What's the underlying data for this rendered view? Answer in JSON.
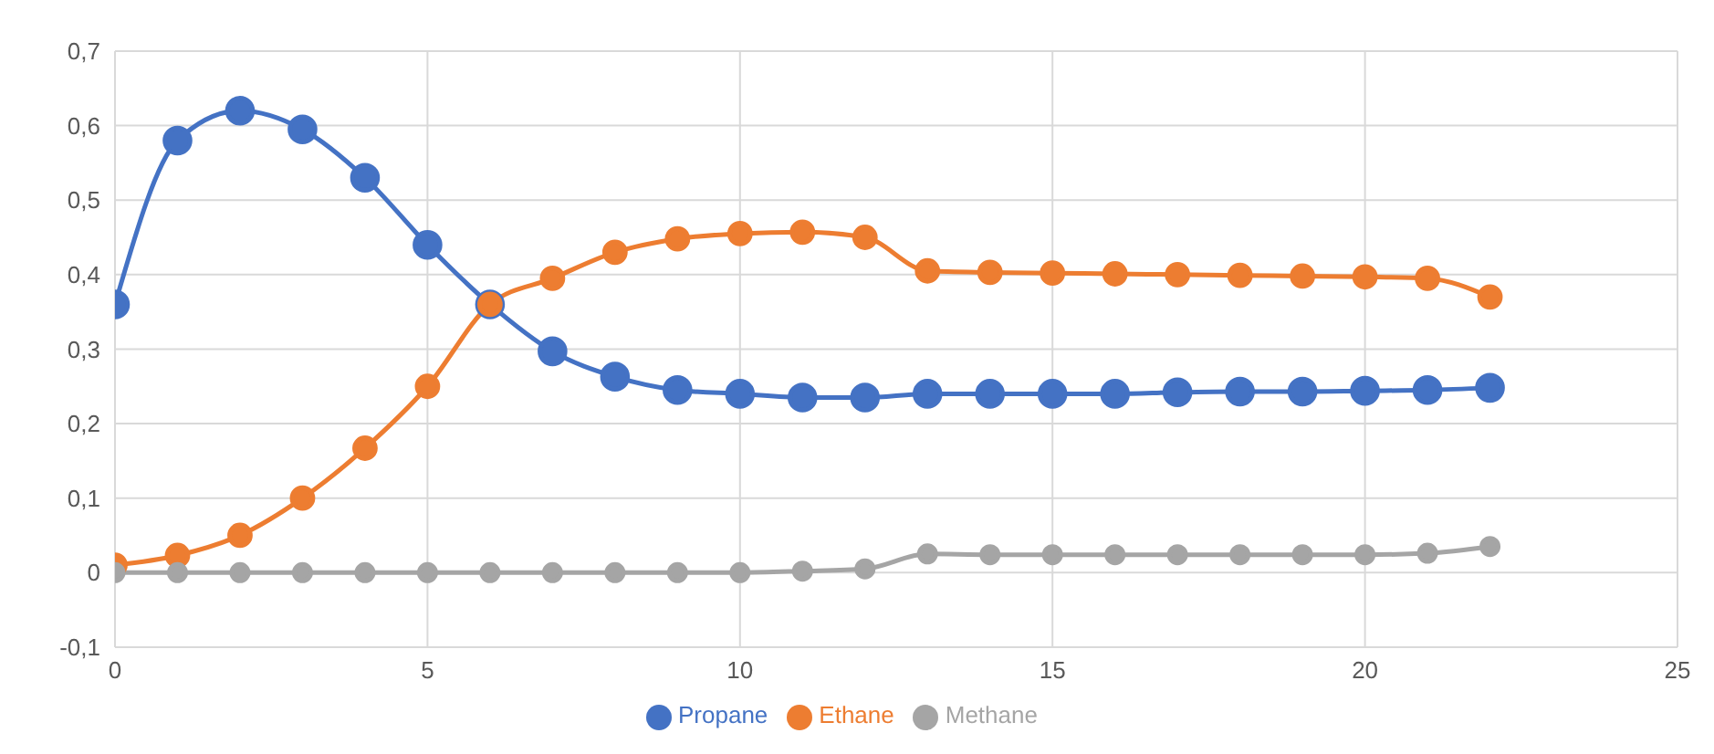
{
  "chart_data": {
    "type": "line",
    "x": [
      0,
      1,
      2,
      3,
      4,
      5,
      6,
      7,
      8,
      9,
      10,
      11,
      12,
      13,
      14,
      15,
      16,
      17,
      18,
      19,
      20,
      21,
      22
    ],
    "series": [
      {
        "name": "Propane",
        "color": "#4472c4",
        "values": [
          0.36,
          0.58,
          0.62,
          0.595,
          0.53,
          0.44,
          0.36,
          0.297,
          0.263,
          0.245,
          0.24,
          0.235,
          0.235,
          0.24,
          0.24,
          0.24,
          0.24,
          0.242,
          0.243,
          0.243,
          0.244,
          0.245,
          0.248
        ]
      },
      {
        "name": "Ethane",
        "color": "#ed7d31",
        "values": [
          0.01,
          0.023,
          0.05,
          0.1,
          0.167,
          0.25,
          0.36,
          0.395,
          0.43,
          0.448,
          0.455,
          0.457,
          0.45,
          0.405,
          0.403,
          0.402,
          0.401,
          0.4,
          0.399,
          0.398,
          0.397,
          0.395,
          0.37
        ]
      },
      {
        "name": "Methane",
        "color": "#a5a5a5",
        "values": [
          0,
          0,
          0,
          0,
          0,
          0,
          0,
          0,
          0,
          0,
          0,
          0.002,
          0.005,
          0.025,
          0.024,
          0.024,
          0.024,
          0.024,
          0.024,
          0.024,
          0.024,
          0.026,
          0.035
        ]
      }
    ],
    "xlim": [
      0,
      25
    ],
    "xticks": [
      0,
      5,
      10,
      15,
      20,
      25
    ],
    "ylim": [
      -0.1,
      0.7
    ],
    "yticks": [
      {
        "value": -0.1,
        "label": "-0,1"
      },
      0,
      {
        "value": 0.1,
        "label": "0,1"
      },
      {
        "value": 0.2,
        "label": "0,2"
      },
      {
        "value": 0.3,
        "label": "0,3"
      },
      {
        "value": 0.4,
        "label": "0,4"
      },
      {
        "value": 0.5,
        "label": "0,5"
      },
      {
        "value": 0.6,
        "label": "0,6"
      },
      {
        "value": 0.7,
        "label": "0,7"
      }
    ],
    "grid": true,
    "legend": "bottom",
    "marker": "circle",
    "line_style": "solid"
  }
}
